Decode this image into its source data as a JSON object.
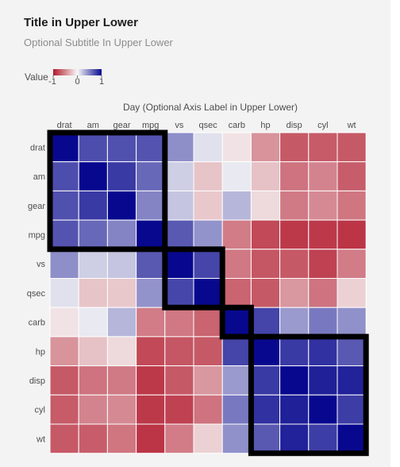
{
  "title": "Title in Upper Lower",
  "subtitle": "Optional Subtitle In Upper Lower",
  "chart_data": {
    "type": "heatmap",
    "xlabel": "Day (Optional Axis Label in Upper Lower)",
    "legend": {
      "title": "Value",
      "ticks": [
        "-1",
        "0",
        "1"
      ],
      "range": [
        -1,
        1
      ],
      "placement": "top-left"
    },
    "colors": {
      "negative": "#b2182b",
      "zero": "#f7f7f7",
      "positive": "#08088f",
      "panel": "#f3f3f3",
      "box": "#000000"
    },
    "x_categories": [
      "drat",
      "am",
      "gear",
      "mpg",
      "vs",
      "qsec",
      "carb",
      "hp",
      "disp",
      "cyl",
      "wt"
    ],
    "y_categories": [
      "drat",
      "am",
      "gear",
      "mpg",
      "vs",
      "qsec",
      "carb",
      "hp",
      "disp",
      "cyl",
      "wt"
    ],
    "values": [
      [
        1.0,
        0.71,
        0.7,
        0.68,
        0.44,
        0.09,
        -0.09,
        -0.45,
        -0.71,
        -0.7,
        -0.71
      ],
      [
        0.71,
        1.0,
        0.79,
        0.6,
        0.17,
        -0.23,
        0.06,
        -0.24,
        -0.59,
        -0.52,
        -0.69
      ],
      [
        0.7,
        0.79,
        1.0,
        0.48,
        0.21,
        -0.21,
        0.27,
        -0.13,
        -0.56,
        -0.49,
        -0.58
      ],
      [
        0.68,
        0.6,
        0.48,
        1.0,
        0.66,
        0.42,
        -0.55,
        -0.78,
        -0.85,
        -0.85,
        -0.87
      ],
      [
        0.44,
        0.17,
        0.21,
        0.66,
        1.0,
        0.74,
        -0.57,
        -0.72,
        -0.71,
        -0.81,
        -0.55
      ],
      [
        0.09,
        -0.23,
        -0.21,
        0.42,
        0.74,
        1.0,
        -0.66,
        -0.71,
        -0.43,
        -0.59,
        -0.17
      ],
      [
        -0.09,
        0.06,
        0.27,
        -0.55,
        -0.57,
        -0.66,
        1.0,
        0.75,
        0.39,
        0.53,
        0.43
      ],
      [
        -0.45,
        -0.24,
        -0.13,
        -0.78,
        -0.72,
        -0.71,
        0.75,
        1.0,
        0.79,
        0.83,
        0.66
      ],
      [
        -0.71,
        -0.59,
        -0.56,
        -0.85,
        -0.71,
        -0.43,
        0.39,
        0.79,
        1.0,
        0.9,
        0.89
      ],
      [
        -0.7,
        -0.52,
        -0.49,
        -0.85,
        -0.81,
        -0.59,
        0.53,
        0.83,
        0.9,
        1.0,
        0.78
      ],
      [
        -0.71,
        -0.69,
        -0.58,
        -0.87,
        -0.55,
        -0.17,
        0.43,
        0.66,
        0.89,
        0.78,
        1.0
      ]
    ],
    "cluster_boxes": [
      {
        "from": "drat",
        "to": "mpg"
      },
      {
        "from": "vs",
        "to": "qsec"
      },
      {
        "from": "carb",
        "to": "carb"
      },
      {
        "from": "hp",
        "to": "wt"
      }
    ]
  }
}
